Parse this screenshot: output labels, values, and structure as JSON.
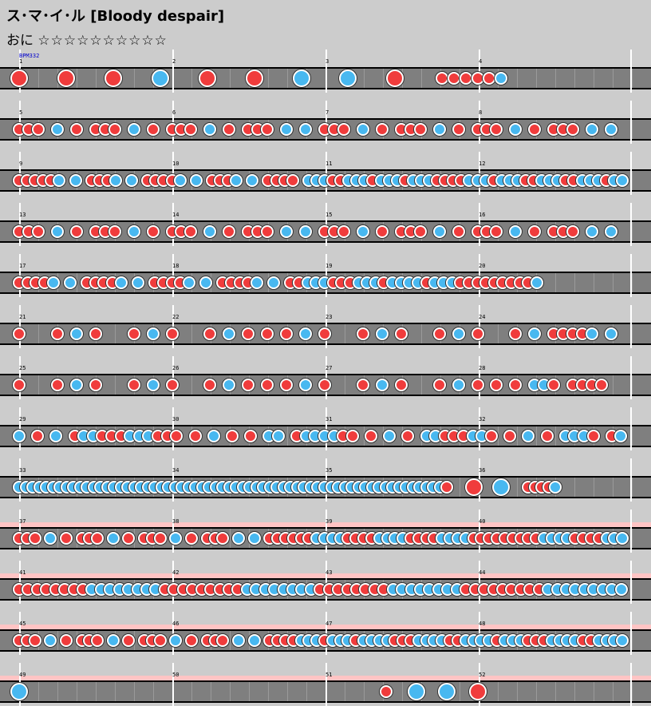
{
  "song": {
    "title": "ス･マ･イ･ル [Bloody despair]",
    "difficulty_label": "おに",
    "stars": "☆☆☆☆☆☆☆☆☆☆",
    "star_level": 10,
    "bpm_label": "BPM332"
  },
  "colors": {
    "background": "#cccccc",
    "gogo_band": "#ffc4c4",
    "lane": "#7f7f7f",
    "don": "#f03c3c",
    "ka": "#48b8f0",
    "barline": "#ffffff"
  },
  "rows": [
    {
      "gogo": false,
      "measures": [
        {
          "num": "1",
          "notes": "D...D...D...K...D...D...K...K...D...dddddk.........."
        }
      ],
      "bpm_label": true
    },
    {
      "gogo": false,
      "measures": [
        {
          "num": "5",
          "notes": "ddd.k.d.ddd.k.d.ddd.k.d.ddd.k.k.ddd.k.d.ddd.k.d.ddd.k.d.ddd.k.k."
        }
      ]
    },
    {
      "gogo": false,
      "measures": [
        {
          "num": "9",
          "notes": "dddddk.k.dddk.k.ddddk.k.dddk.k.dddd.kkkddkkkdkkkdkkkddddkkkdkkkddkkkddkkkdkk"
        }
      ]
    },
    {
      "gogo": false,
      "measures": [
        {
          "num": "13",
          "notes": "ddd.k.d.ddd.k.d.ddd.k.d.ddd.k.k.ddd.k.d.ddd.k.d.ddd.k.d.ddd.k.k."
        }
      ]
    },
    {
      "gogo": false,
      "measures": [
        {
          "num": "17",
          "notes": "ddddk.k.ddddk.k.ddddk.k.ddddk.k.ddkkkdddkkkdkkkkdkkkdddddddddk.........."
        }
      ]
    },
    {
      "gogo": false,
      "measures": [
        {
          "num": "21",
          "notes": "d...d.k.d...d.k.d...d.k.d.d.d.k.d...d.k.d...d.k.d...d.k.ddddk.k."
        }
      ]
    },
    {
      "gogo": false,
      "measures": [
        {
          "num": "25",
          "notes": "d...d.k.d...d.k.d...d.k.d.d.d.k.d...d.k.d...d.k.d.d.d.kkd.dddd.."
        }
      ]
    },
    {
      "gogo": false,
      "measures": [
        {
          "num": "29",
          "notes": "k.d.k.dkkdddkkkddd.d.k.d.d.kk.dkkkkdd.d.k.d.kkdddkkd.d.k.d.kkkd.dk"
        }
      ]
    },
    {
      "gogo": false,
      "measures": [
        {
          "num": "33",
          "notes": "kkkkkkkkkkkkkkkkkkkkkkkkkkkkkkkkkkkkkkkkkkkkkkkkkkkkkkkkkkkkkkkd...D...K...ddddk.........."
        }
      ]
    },
    {
      "gogo": true,
      "measures": [
        {
          "num": "37",
          "notes": "ddd.k.d.ddd.k.d.ddd.k.d.ddd.k.k.ddddddkkkkddddkkkkddddkkkkdddddddddkkkkddddkkk"
        }
      ]
    },
    {
      "gogo": true,
      "measures": [
        {
          "num": "41",
          "notes": "ddddddddkkkkkkkkdddddddddkkkkkkkkddddddddkkkkkkkkdddddddddkkkkkkkkk"
        }
      ]
    },
    {
      "gogo": true,
      "measures": [
        {
          "num": "45",
          "notes": "ddd.k.d.ddd.k.d.ddd.k.d.ddd.k.k.ddddkkkdkkkdkkkkdddkkkkddkkkkdkkkdddkkkkddkkkk"
        }
      ]
    },
    {
      "gogo": true,
      "measures": [
        {
          "num": "49",
          "notes": "K...............................................d...K...K...D..................."
        }
      ]
    }
  ],
  "measure_numbers": [
    "1",
    "2",
    "3",
    "4",
    "5",
    "6",
    "7",
    "8",
    "9",
    "10",
    "11",
    "12",
    "13",
    "14",
    "15",
    "16",
    "17",
    "18",
    "19",
    "20",
    "21",
    "22",
    "23",
    "24",
    "25",
    "26",
    "27",
    "28",
    "29",
    "30",
    "31",
    "32",
    "33",
    "34",
    "35",
    "36",
    "37",
    "38",
    "39",
    "40",
    "41",
    "42",
    "43",
    "44",
    "45",
    "46",
    "47",
    "48",
    "49",
    "50",
    "51",
    "52"
  ]
}
